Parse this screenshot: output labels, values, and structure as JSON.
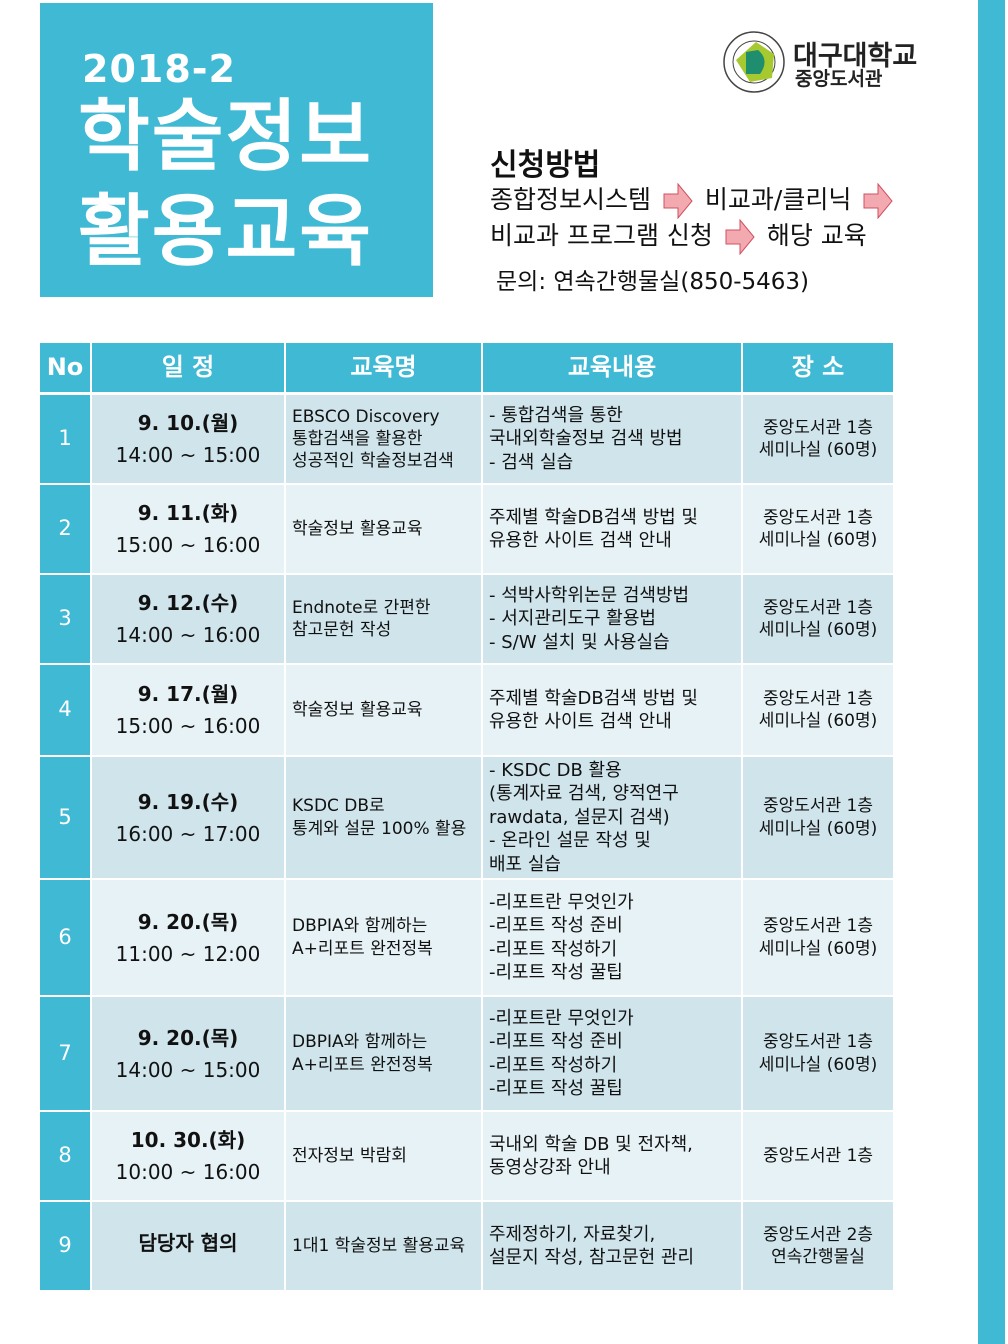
{
  "header": {
    "year": "2018-2",
    "title_line1": "학술정보",
    "title_line2": "활용교육"
  },
  "logo": {
    "name": "대구대학교",
    "sub": "중앙도서관",
    "seal_text": "DAEGU UNIVERSITY 1956 대구대학교"
  },
  "apply": {
    "title": "신청방법",
    "step1": "종합정보시스템",
    "step2": "비교과/클리닉",
    "step3": "비교과 프로그램 신청",
    "step4": "해당 교육",
    "contact": "문의: 연속간행물실(850-5463)",
    "arrow_color": "#f2aab0"
  },
  "colors": {
    "accent": "#40b9d4",
    "row_odd": "#cfe4eb",
    "row_even": "#e7f2f6"
  },
  "table": {
    "headers": [
      "No",
      "일 정",
      "교육명",
      "교육내용",
      "장 소"
    ],
    "rows": [
      {
        "no": "1",
        "date": "9. 10.(월)",
        "time": "14:00 ~ 15:00",
        "name": "EBSCO Discovery\n통합검색을 활용한\n성공적인 학술정보검색",
        "content": "- 통합검색을 통한\n 국내외학술정보 검색 방법\n- 검색 실습",
        "place": "중앙도서관 1층\n세미나실 (60명)"
      },
      {
        "no": "2",
        "date": "9. 11.(화)",
        "time": "15:00 ~ 16:00",
        "name": "학술정보 활용교육",
        "content": "주제별 학술DB검색 방법 및\n유용한 사이트 검색 안내",
        "place": "중앙도서관 1층\n세미나실 (60명)"
      },
      {
        "no": "3",
        "date": "9. 12.(수)",
        "time": "14:00 ~ 16:00",
        "name": "Endnote로 간편한\n참고문헌 작성",
        "content": "- 석박사학위논문 검색방법\n- 서지관리도구 활용법\n- S/W 설치 및 사용실습",
        "place": "중앙도서관 1층\n세미나실 (60명)"
      },
      {
        "no": "4",
        "date": "9. 17.(월)",
        "time": "15:00 ~ 16:00",
        "name": "학술정보 활용교육",
        "content": "주제별 학술DB검색 방법 및\n유용한 사이트 검색 안내",
        "place": "중앙도서관 1층\n세미나실 (60명)"
      },
      {
        "no": "5",
        "date": "9. 19.(수)",
        "time": "16:00 ~ 17:00",
        "name": "KSDC DB로\n통계와 설문 100% 활용",
        "content": "- KSDC DB 활용\n (통계자료 검색, 양적연구\n rawdata, 설문지 검색)\n- 온라인 설문 작성 및\n 배포 실습",
        "place": "중앙도서관 1층\n세미나실 (60명)"
      },
      {
        "no": "6",
        "date": "9. 20.(목)",
        "time": "11:00 ~ 12:00",
        "name": "DBPIA와 함께하는\nA+리포트 완전정복",
        "content": "-리포트란 무엇인가\n-리포트 작성 준비\n-리포트 작성하기\n-리포트 작성 꿀팁",
        "place": "중앙도서관 1층\n세미나실 (60명)"
      },
      {
        "no": "7",
        "date": "9. 20.(목)",
        "time": "14:00 ~ 15:00",
        "name": "DBPIA와 함께하는\nA+리포트 완전정복",
        "content": "-리포트란 무엇인가\n-리포트 작성 준비\n-리포트 작성하기\n-리포트 작성 꿀팁",
        "place": "중앙도서관 1층\n세미나실 (60명)"
      },
      {
        "no": "8",
        "date": "10. 30.(화)",
        "time": "10:00 ~ 16:00",
        "name": "전자정보 박람회",
        "content": "국내외 학술 DB 및 전자책,\n동영상강좌 안내",
        "place": "중앙도서관 1층"
      },
      {
        "no": "9",
        "date": "담당자 협의",
        "time": "",
        "name": "1대1 학술정보 활용교육",
        "content": "주제정하기, 자료찾기,\n설문지 작성, 참고문헌 관리",
        "place": "중앙도서관 2층\n연속간행물실"
      }
    ]
  }
}
